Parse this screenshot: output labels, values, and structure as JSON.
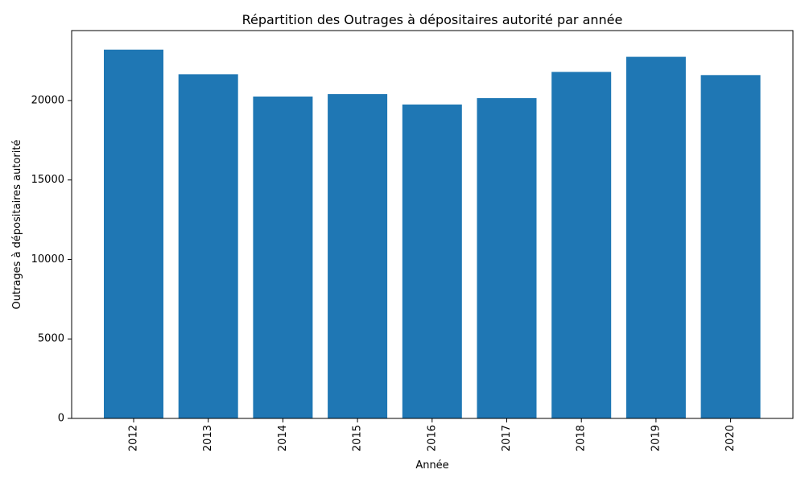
{
  "chart_data": {
    "type": "bar",
    "title": "Répartition des Outrages à dépositaires autorité par année",
    "xlabel": "Année",
    "ylabel": "Outrages à dépositaires autorité",
    "categories": [
      "2012",
      "2013",
      "2014",
      "2015",
      "2016",
      "2017",
      "2018",
      "2019",
      "2020"
    ],
    "values": [
      23200,
      21650,
      20250,
      20400,
      19750,
      20150,
      21800,
      22750,
      21600
    ],
    "ylim": [
      0,
      24400
    ],
    "yticks": [
      0,
      5000,
      10000,
      15000,
      20000
    ],
    "grid": false,
    "bar_color": "#1f77b4",
    "xtick_rotation": "vertical"
  }
}
